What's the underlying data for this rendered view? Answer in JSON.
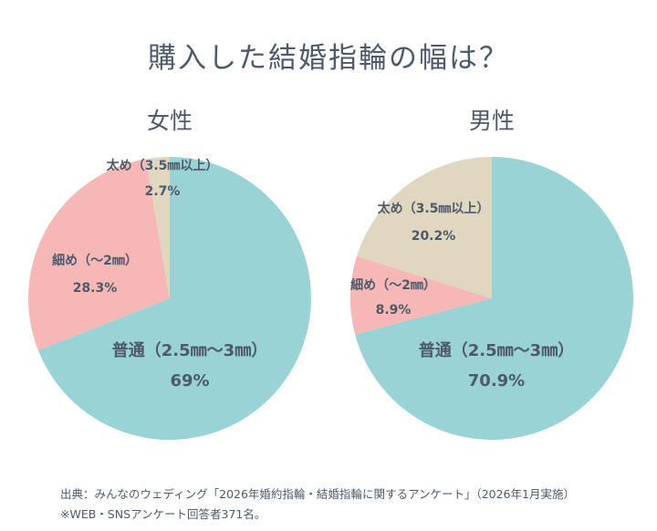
{
  "title": "購入した結婚指輪の幅は？",
  "colors": {
    "wide": "#e1d6c0",
    "narrow": "#f5b8b6",
    "standard": "#99d3d6",
    "label": "#4d5a6b"
  },
  "chart_data": [
    {
      "type": "pie",
      "title": "女性",
      "slices": [
        {
          "key": "standard",
          "label": "普通（2.5㎜〜3㎜）",
          "value": 69,
          "value_label": "69%"
        },
        {
          "key": "narrow",
          "label": "細め（〜2㎜）",
          "value": 28.3,
          "value_label": "28.3%"
        },
        {
          "key": "wide",
          "label": "太め（3.5㎜以上）",
          "value": 2.7,
          "value_label": "2.7%"
        }
      ]
    },
    {
      "type": "pie",
      "title": "男性",
      "slices": [
        {
          "key": "standard",
          "label": "普通（2.5㎜〜3㎜）",
          "value": 70.9,
          "value_label": "70.9%"
        },
        {
          "key": "narrow",
          "label": "細め（〜2㎜）",
          "value": 8.9,
          "value_label": "8.9%"
        },
        {
          "key": "wide",
          "label": "太め（3.5㎜以上）",
          "value": 20.2,
          "value_label": "20.2%"
        }
      ]
    }
  ],
  "source": {
    "line1": "出典：みんなのウェディング「2026年婚約指輪・結婚指輪に関するアンケート」（2026年1月実施）",
    "line2": "※WEB・SNSアンケート回答者371名。"
  }
}
